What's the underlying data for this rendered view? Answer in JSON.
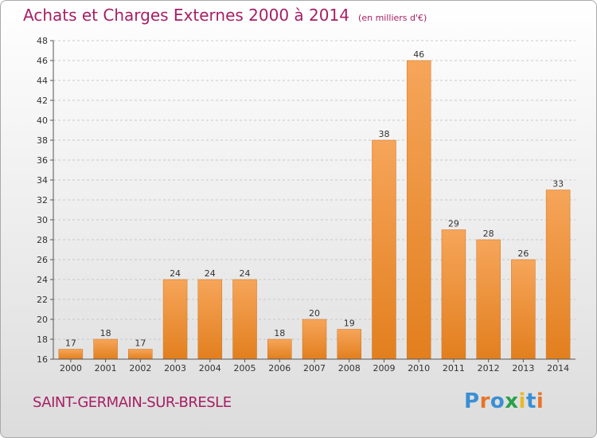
{
  "title": "Achats et Charges Externes 2000 à 2014",
  "unit_note": "(en milliers d'€)",
  "commune": "SAINT-GERMAIN-SUR-BRESLE",
  "brand": {
    "text": "Proxiti",
    "letters": [
      {
        "ch": "P",
        "color": "#3a8fd4"
      },
      {
        "ch": "r",
        "color": "#e8742a"
      },
      {
        "ch": "o",
        "color": "#3a8fd4"
      },
      {
        "ch": "x",
        "color": "#2aa04a"
      },
      {
        "ch": "i",
        "color": "#e8b92a"
      },
      {
        "ch": "t",
        "color": "#3a8fd4"
      },
      {
        "ch": "i",
        "color": "#e8742a"
      }
    ]
  },
  "colors": {
    "title": "#a61f64",
    "bar_light": "#f6a55a",
    "bar_dark": "#e27f1e",
    "grid": "#c8c8c8",
    "axis": "#555555"
  },
  "chart_data": {
    "type": "bar",
    "title": "Achats et Charges Externes 2000 à 2014",
    "subtitle": "(en milliers d'€)",
    "categories": [
      "2000",
      "2001",
      "2002",
      "2003",
      "2004",
      "2005",
      "2006",
      "2007",
      "2008",
      "2009",
      "2010",
      "2011",
      "2012",
      "2013",
      "2014"
    ],
    "values": [
      17,
      18,
      17,
      24,
      24,
      24,
      18,
      20,
      19,
      38,
      46,
      29,
      28,
      26,
      33
    ],
    "ylim": [
      16,
      48
    ],
    "yticks": [
      16,
      18,
      20,
      22,
      24,
      26,
      28,
      30,
      32,
      34,
      36,
      38,
      40,
      42,
      44,
      46,
      48
    ],
    "grid": true,
    "xlabel": "",
    "ylabel": ""
  }
}
